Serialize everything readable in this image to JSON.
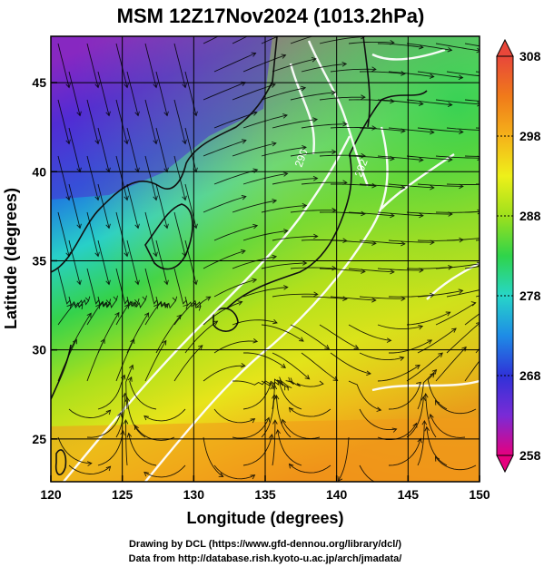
{
  "title": "MSM 12Z17Nov2024 (1013.2hPa)",
  "x_axis": {
    "label": "Longitude (degrees)",
    "range": [
      120,
      150
    ],
    "ticks": [
      "120",
      "125",
      "130",
      "135",
      "140",
      "145",
      "150"
    ]
  },
  "y_axis": {
    "label": "Latitude  (degrees)",
    "range": [
      22.6,
      47.6
    ],
    "ticks": [
      "25",
      "30",
      "35",
      "40",
      "45"
    ]
  },
  "colorbar": {
    "range": [
      258,
      308
    ],
    "ticks": [
      "258",
      "268",
      "278",
      "288",
      "298",
      "308"
    ],
    "colors": [
      "#e6007e",
      "#7a2bd6",
      "#2f32d8",
      "#1e8ce6",
      "#27d6c8",
      "#2fd44a",
      "#9ee01c",
      "#eef01a",
      "#f5b21a",
      "#f07a1a",
      "#e8473a"
    ]
  },
  "contour_labels": [
    "290",
    "292"
  ],
  "credits": {
    "line1": "Drawing by DCL (https://www.gfd-dennou.org/library/dcl/)",
    "line2": "Data from http://database.rish.kyoto-u.ac.jp/arch/jmadata/"
  }
}
